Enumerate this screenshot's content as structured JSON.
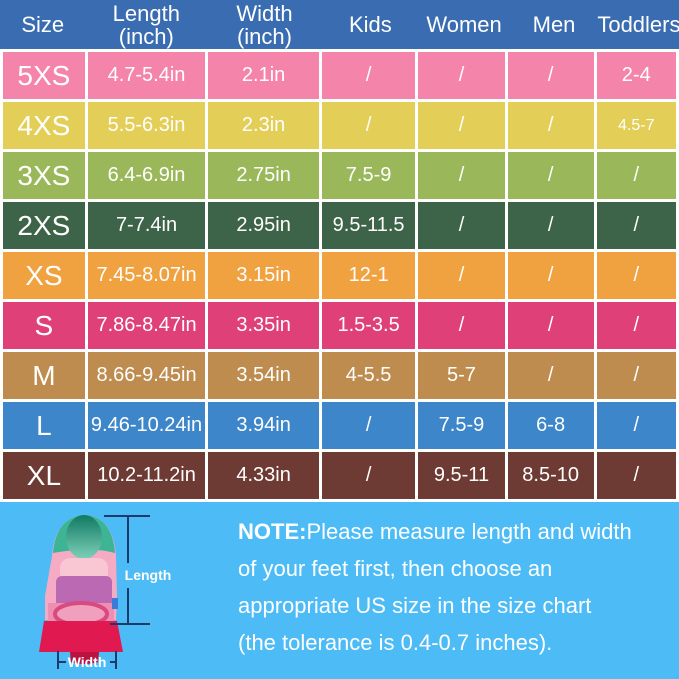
{
  "chart_data": {
    "type": "table",
    "title": "Swim fin size chart",
    "columns": [
      {
        "label": "Size"
      },
      {
        "label": "Length",
        "sub": "(inch)"
      },
      {
        "label": "Width",
        "sub": "(inch)"
      },
      {
        "label": "Kids"
      },
      {
        "label": "Women"
      },
      {
        "label": "Men"
      },
      {
        "label": "Toddlers"
      }
    ],
    "rows": [
      {
        "size": "5XS",
        "length": "4.7-5.4in",
        "width": "2.1in",
        "kids": "/",
        "women": "/",
        "men": "/",
        "toddlers": "2-4",
        "color": "#f584aa"
      },
      {
        "size": "4XS",
        "length": "5.5-6.3in",
        "width": "2.3in",
        "kids": "/",
        "women": "/",
        "men": "/",
        "toddlers": "4.5-7",
        "color": "#e3cf58",
        "small_toddlers": true
      },
      {
        "size": "3XS",
        "length": "6.4-6.9in",
        "width": "2.75in",
        "kids": "7.5-9",
        "women": "/",
        "men": "/",
        "toddlers": "/",
        "color": "#9ab85a"
      },
      {
        "size": "2XS",
        "length": "7-7.4in",
        "width": "2.95in",
        "kids": "9.5-11.5",
        "women": "/",
        "men": "/",
        "toddlers": "/",
        "color": "#3d6349"
      },
      {
        "size": "XS",
        "length": "7.45-8.07in",
        "width": "3.15in",
        "kids": "12-1",
        "women": "/",
        "men": "/",
        "toddlers": "/",
        "color": "#f0a240"
      },
      {
        "size": "S",
        "length": "7.86-8.47in",
        "width": "3.35in",
        "kids": "1.5-3.5",
        "women": "/",
        "men": "/",
        "toddlers": "/",
        "color": "#df4078"
      },
      {
        "size": "M",
        "length": "8.66-9.45in",
        "width": "3.54in",
        "kids": "4-5.5",
        "women": "5-7",
        "men": "/",
        "toddlers": "/",
        "color": "#bd8c4e"
      },
      {
        "size": "L",
        "length": "9.46-10.24in",
        "width": "3.94in",
        "kids": "/",
        "women": "7.5-9",
        "men": "6-8",
        "toddlers": "/",
        "color": "#3d86c9"
      },
      {
        "size": "XL",
        "length": "10.2-11.2in",
        "width": "4.33in",
        "kids": "/",
        "women": "9.5-11",
        "men": "8.5-10",
        "toddlers": "/",
        "color": "#6e3a34"
      }
    ]
  },
  "note": {
    "label": "NOTE:",
    "line1": "Please measure length and width",
    "line2": "of your feet first, then choose an",
    "line3": "appropriate US size in the size chart",
    "line4": "(the tolerance is 0.4-0.7 inches)."
  },
  "fin": {
    "length_label": "Length",
    "width_label": "Width"
  },
  "colors": {
    "header_bg": "#3a6cb1",
    "bottom_bg": "#4dbbf6",
    "grid": "#ffffff",
    "table_text": "#ffffff",
    "dimension_line": "#1e3a6a"
  }
}
